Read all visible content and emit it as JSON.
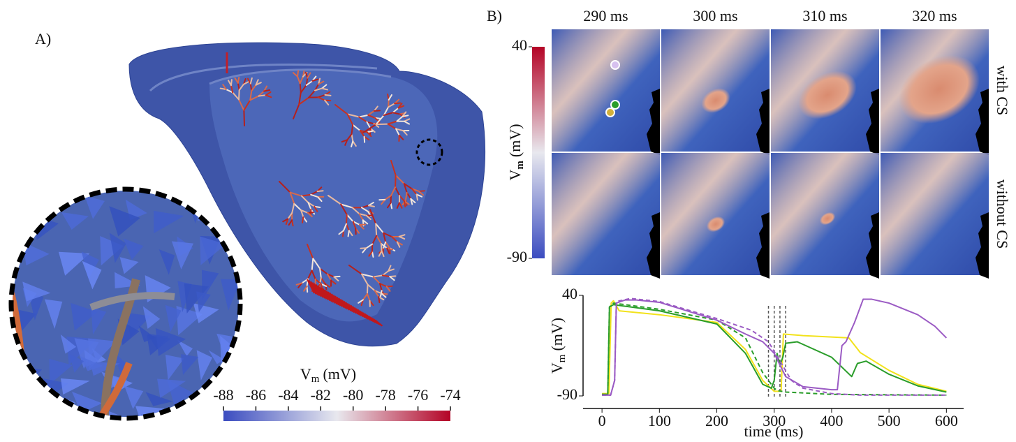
{
  "panel_a": {
    "label": "A)",
    "colorbar": {
      "label_main": "V",
      "label_sub": "m",
      "label_unit": "(mV)",
      "lim": [
        -88,
        -74
      ],
      "ticks": [
        -88,
        -86,
        -84,
        -82,
        -80,
        -78,
        -76,
        -74
      ]
    }
  },
  "panel_b": {
    "label": "B)",
    "columns": [
      "290 ms",
      "300 ms",
      "310 ms",
      "320 ms"
    ],
    "rows": [
      "with CS",
      "without CS"
    ],
    "colorbar": {
      "label_main": "V",
      "label_sub": "m",
      "label_unit": "(mV)",
      "lim": [
        -90,
        40
      ],
      "ticks": [
        -90,
        40
      ]
    }
  },
  "chart_data": {
    "type": "line",
    "xlabel": "time (ms)",
    "ylabel_main": "V",
    "ylabel_sub": "m",
    "ylabel_unit": "(mV)",
    "xlim": [
      -33,
      630
    ],
    "ylim": [
      -90,
      40
    ],
    "xticks": [
      0,
      100,
      200,
      300,
      400,
      500,
      600
    ],
    "yticks": [
      -90,
      40
    ],
    "vlines": [
      290,
      300,
      310,
      320
    ],
    "series": [
      {
        "color": "#f2e21b",
        "dashed": false,
        "x": [
          0,
          12,
          16,
          20,
          30,
          100,
          200,
          250,
          280,
          300,
          312,
          316,
          350,
          430,
          450,
          500,
          550,
          600
        ],
        "values": [
          -87,
          -87,
          30,
          33,
          20,
          15,
          5,
          -30,
          -70,
          -84,
          -84,
          -10,
          -12,
          -15,
          -34,
          -57,
          -75,
          -84
        ]
      },
      {
        "color": "#2a9d2a",
        "dashed": false,
        "x": [
          0,
          10,
          13,
          20,
          50,
          100,
          200,
          250,
          280,
          295,
          300,
          305,
          310,
          315,
          320,
          340,
          400,
          435,
          445,
          460,
          500,
          550,
          600
        ],
        "values": [
          -88,
          -88,
          25,
          28,
          25,
          20,
          3,
          -35,
          -75,
          -80,
          -70,
          -35,
          -50,
          -40,
          -22,
          -20,
          -40,
          -65,
          -48,
          -45,
          -62,
          -77,
          -85
        ]
      },
      {
        "color": "#2a9d2a",
        "dashed": true,
        "x": [
          0,
          10,
          13,
          20,
          100,
          200,
          250,
          280,
          300,
          305,
          320,
          400,
          600
        ],
        "values": [
          -88,
          -88,
          25,
          30,
          22,
          8,
          -15,
          -60,
          -80,
          -83,
          -85,
          -88,
          -89
        ]
      },
      {
        "color": "#9b5bc4",
        "dashed": false,
        "x": [
          0,
          15,
          22,
          25,
          40,
          60,
          100,
          200,
          250,
          280,
          300,
          320,
          350,
          400,
          410,
          418,
          425,
          440,
          455,
          470,
          500,
          550,
          580,
          600
        ],
        "values": [
          -89,
          -89,
          -70,
          30,
          34,
          34,
          31,
          8,
          -10,
          -20,
          -35,
          -65,
          -78,
          -82,
          -82,
          -25,
          -20,
          5,
          35,
          35,
          30,
          15,
          0,
          -15
        ]
      },
      {
        "color": "#9b5bc4",
        "dashed": true,
        "x": [
          0,
          15,
          22,
          25,
          50,
          100,
          200,
          260,
          290,
          310,
          330,
          350,
          400,
          450,
          600
        ],
        "values": [
          -89,
          -89,
          -70,
          32,
          36,
          32,
          10,
          -5,
          -20,
          -45,
          -70,
          -80,
          -87,
          -89,
          -89
        ]
      }
    ]
  }
}
